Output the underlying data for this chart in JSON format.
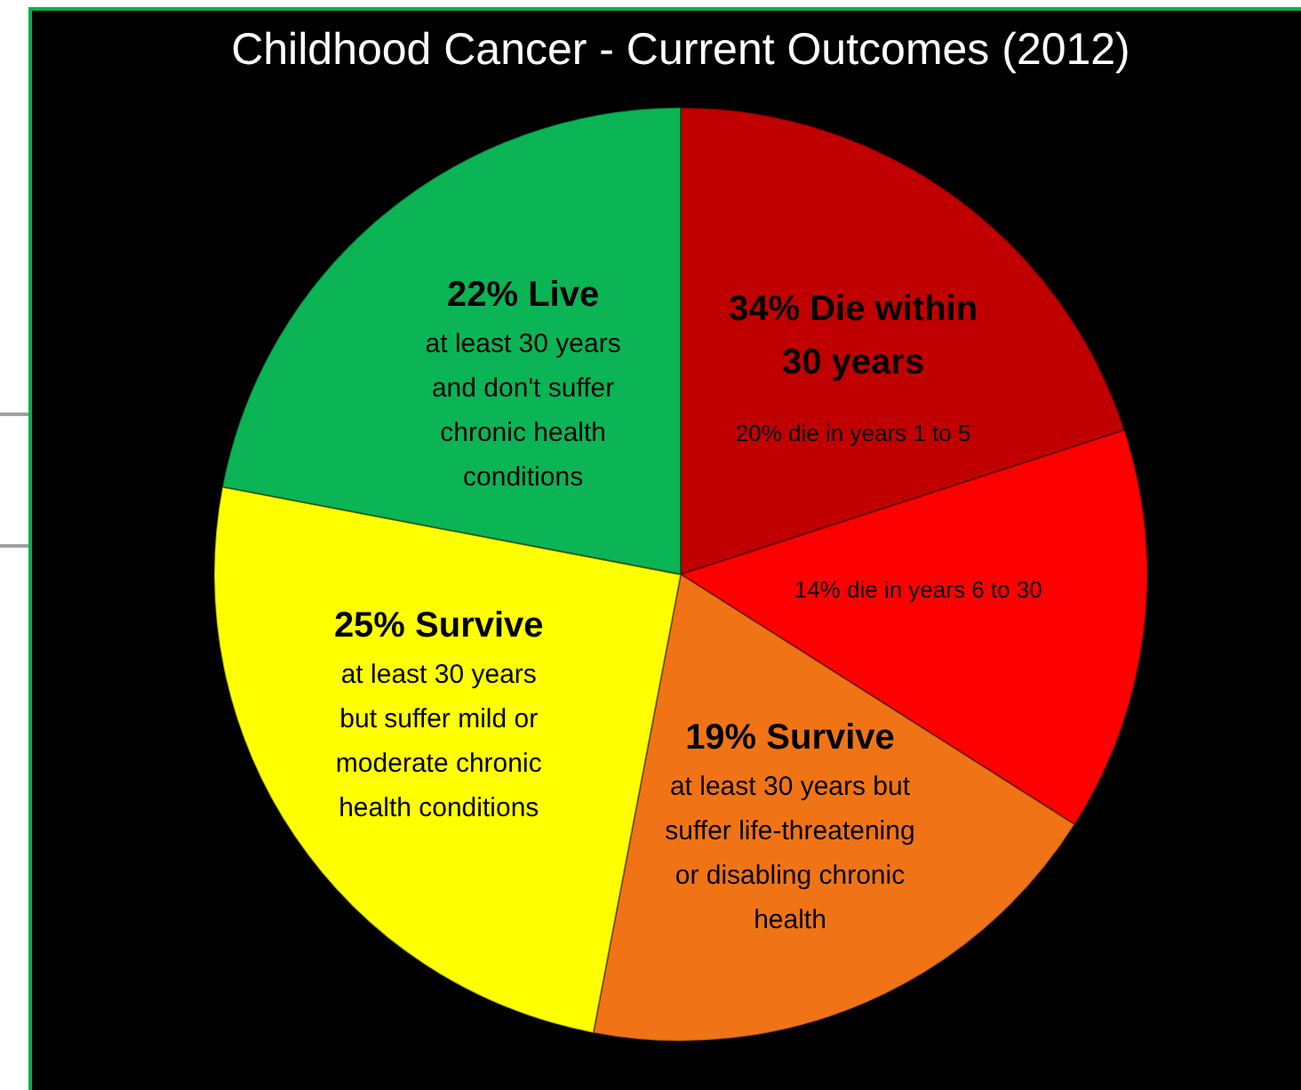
{
  "chart_data": {
    "type": "pie",
    "title": "Childhood Cancer - Current Outcomes (2012)",
    "categories": [
      "20% die in years 1 to 5",
      "14% die in years 6 to 30",
      "19% Survive",
      "25% Survive",
      "22% Live"
    ],
    "values": [
      20,
      14,
      19,
      25,
      22
    ],
    "colors": [
      "#c00000",
      "#ff0000",
      "#f07416",
      "#ffff00",
      "#0bb455"
    ],
    "annotations": [
      "34% Die within 30 years",
      "at least 30 years but suffer life-threatening or disabling chronic health",
      "at least 30 years but suffer mild or moderate chronic health conditions",
      "at least 30 years and don't suffer chronic health conditions"
    ]
  }
}
